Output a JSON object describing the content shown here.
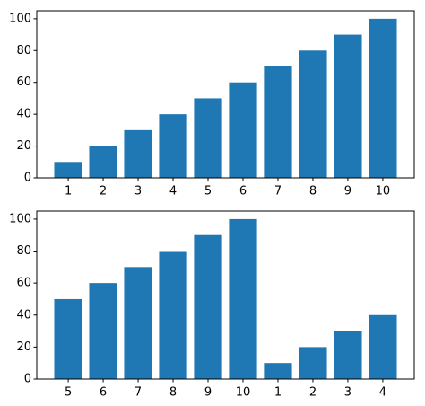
{
  "chart_data": [
    {
      "type": "bar",
      "categories": [
        "1",
        "2",
        "3",
        "4",
        "5",
        "6",
        "7",
        "8",
        "9",
        "10"
      ],
      "values": [
        10,
        20,
        30,
        40,
        50,
        60,
        70,
        80,
        90,
        100
      ],
      "title": "",
      "xlabel": "",
      "ylabel": "",
      "ylim": [
        0,
        105
      ],
      "yticks": [
        0,
        20,
        40,
        60,
        80,
        100
      ],
      "grid": false,
      "color": "#1f77b4"
    },
    {
      "type": "bar",
      "categories": [
        "5",
        "6",
        "7",
        "8",
        "9",
        "10",
        "1",
        "2",
        "3",
        "4"
      ],
      "values": [
        50,
        60,
        70,
        80,
        90,
        100,
        10,
        20,
        30,
        40
      ],
      "title": "",
      "xlabel": "",
      "ylabel": "",
      "ylim": [
        0,
        105
      ],
      "yticks": [
        0,
        20,
        40,
        60,
        80,
        100
      ],
      "grid": false,
      "color": "#1f77b4"
    }
  ]
}
